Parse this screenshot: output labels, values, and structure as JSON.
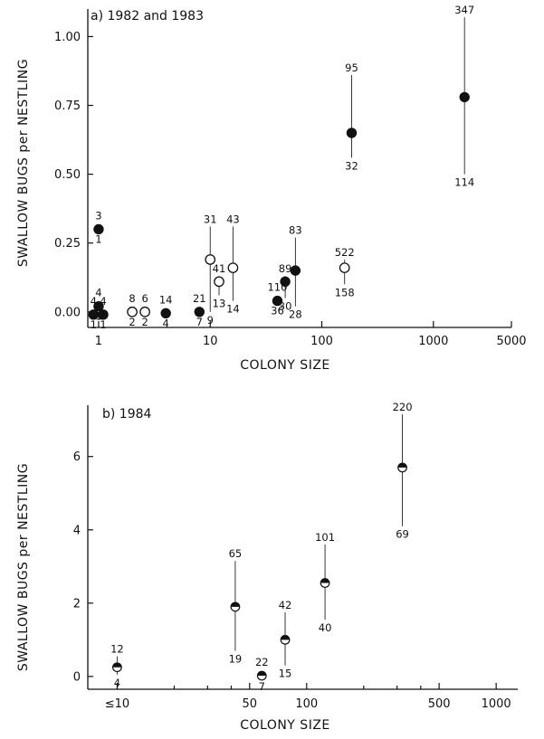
{
  "chart_data": [
    {
      "type": "scatter",
      "title": "a) 1982 and 1983",
      "xlabel": "COLONY SIZE",
      "ylabel": "SWALLOW BUGS per NESTLING",
      "xscale": "log",
      "xlim": [
        0.8,
        5000
      ],
      "ylim": [
        -0.05,
        1.1
      ],
      "x_ticks": [
        {
          "value": 1,
          "label": "1"
        },
        {
          "value": 10,
          "label": "10"
        },
        {
          "value": 100,
          "label": "100"
        },
        {
          "value": 1000,
          "label": "1000"
        },
        {
          "value": 5000,
          "label": "5000"
        }
      ],
      "y_ticks": [
        {
          "value": 0,
          "label": "0.00"
        },
        {
          "value": 0.25,
          "label": "0.25"
        },
        {
          "value": 0.5,
          "label": "0.50"
        },
        {
          "value": 0.75,
          "label": "0.75"
        },
        {
          "value": 1.0,
          "label": "1.00"
        }
      ],
      "marker_color": "#111111",
      "points": [
        {
          "x": 0.9,
          "y": -0.01,
          "marker": "filled",
          "top_label": "4",
          "bottom_label": "1"
        },
        {
          "x": 1.0,
          "y": 0.3,
          "marker": "filled",
          "top_label": "3",
          "bottom_label": "1"
        },
        {
          "x": 1.0,
          "y": 0.02,
          "marker": "filled",
          "top_label": "4",
          "bottom_label": "1"
        },
        {
          "x": 1.1,
          "y": -0.01,
          "marker": "filled",
          "top_label": "4",
          "bottom_label": "1"
        },
        {
          "x": 2.0,
          "y": 0.0,
          "marker": "open",
          "top_label": "8",
          "bottom_label": "2"
        },
        {
          "x": 2.6,
          "y": 0.0,
          "marker": "open",
          "top_label": "6",
          "bottom_label": "2"
        },
        {
          "x": 4.0,
          "y": -0.005,
          "marker": "filled",
          "top_label": "14",
          "bottom_label": "4"
        },
        {
          "x": 8.0,
          "y": 0.0,
          "marker": "filled",
          "top_label": "21",
          "bottom_label": "7"
        },
        {
          "x": 10.0,
          "y": 0.19,
          "marker": "open",
          "top_label": "31",
          "bottom_label": "9",
          "y_high": 0.31,
          "y_low": 0.0
        },
        {
          "x": 12.0,
          "y": 0.11,
          "marker": "open",
          "top_label": "41",
          "bottom_label": "13",
          "y_high": 0.13,
          "y_low": 0.06
        },
        {
          "x": 16.0,
          "y": 0.16,
          "marker": "open",
          "top_label": "43",
          "bottom_label": "14",
          "y_high": 0.31,
          "y_low": 0.04
        },
        {
          "x": 40.0,
          "y": 0.04,
          "marker": "filled",
          "top_label": "110",
          "bottom_label": "36"
        },
        {
          "x": 47.0,
          "y": 0.11,
          "marker": "filled",
          "top_label": "89",
          "bottom_label": "30",
          "y_high": 0.13,
          "y_low": 0.05
        },
        {
          "x": 58.0,
          "y": 0.15,
          "marker": "filled",
          "top_label": "83",
          "bottom_label": "28",
          "y_high": 0.27,
          "y_low": 0.02
        },
        {
          "x": 160.0,
          "y": 0.16,
          "marker": "open",
          "top_label": "522",
          "bottom_label": "158",
          "y_high": 0.19,
          "y_low": 0.1
        },
        {
          "x": 185.0,
          "y": 0.65,
          "marker": "filled",
          "top_label": "95",
          "bottom_label": "32",
          "y_high": 0.86,
          "y_low": 0.56
        },
        {
          "x": 1900.0,
          "y": 0.78,
          "marker": "filled",
          "top_label": "347",
          "bottom_label": "114",
          "y_high": 1.07,
          "y_low": 0.5
        }
      ]
    },
    {
      "type": "scatter",
      "title": "b) 1984",
      "xlabel": "COLONY SIZE",
      "ylabel": "SWALLOW BUGS per NESTLING",
      "xscale": "log",
      "xlim": [
        7,
        1300
      ],
      "ylim": [
        -0.3,
        7.4
      ],
      "x_ticks": [
        {
          "value": 10,
          "label": "≤10"
        },
        {
          "value": 50,
          "label": "50"
        },
        {
          "value": 100,
          "label": "100"
        },
        {
          "value": 500,
          "label": "500"
        },
        {
          "value": 1000,
          "label": "1000"
        }
      ],
      "x_minor_ticks": [
        20,
        30,
        40,
        200,
        300,
        400
      ],
      "y_ticks": [
        {
          "value": 0,
          "label": "0"
        },
        {
          "value": 2,
          "label": "2"
        },
        {
          "value": 4,
          "label": "4"
        },
        {
          "value": 6,
          "label": "6"
        }
      ],
      "marker_color": "#111111",
      "points": [
        {
          "x": 10.0,
          "y": 0.25,
          "marker": "half",
          "top_label": "12",
          "bottom_label": "4",
          "y_high": 0.55,
          "y_low": 0.05
        },
        {
          "x": 42.0,
          "y": 1.9,
          "marker": "half",
          "top_label": "65",
          "bottom_label": "19",
          "y_high": 3.15,
          "y_low": 0.7
        },
        {
          "x": 58.0,
          "y": 0.02,
          "marker": "half",
          "top_label": "22",
          "bottom_label": "7"
        },
        {
          "x": 77.0,
          "y": 1.0,
          "marker": "half",
          "top_label": "42",
          "bottom_label": "15",
          "y_high": 1.75,
          "y_low": 0.3
        },
        {
          "x": 125.0,
          "y": 2.55,
          "marker": "half",
          "top_label": "101",
          "bottom_label": "40",
          "y_high": 3.6,
          "y_low": 1.55
        },
        {
          "x": 320.0,
          "y": 5.7,
          "marker": "half",
          "top_label": "220",
          "bottom_label": "69",
          "y_high": 7.15,
          "y_low": 4.1
        }
      ]
    }
  ]
}
